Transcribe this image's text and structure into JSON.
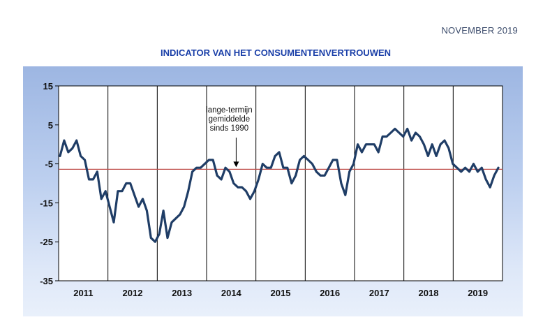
{
  "header": {
    "date": "NOVEMBER 2019"
  },
  "chart_data": {
    "type": "line",
    "title": "INDICATOR VAN HET CONSUMENTENVERTROUWEN",
    "xlabel": "",
    "ylabel": "",
    "ylim": [
      -35,
      15
    ],
    "yticks": [
      15,
      5,
      -5,
      -15,
      -25,
      -35
    ],
    "year_labels": [
      "2011",
      "2012",
      "2013",
      "2014",
      "2015",
      "2016",
      "2017",
      "2018",
      "2019"
    ],
    "x_start_year": 2011,
    "grid": "vertical lines at year boundaries",
    "reference_line": {
      "value": -6.4,
      "color": "#c0504d"
    },
    "annotation": {
      "lines": [
        "lange-termijn",
        "gemiddelde",
        "sinds 1990"
      ],
      "x_year": 2014.6,
      "arrow_to": -6.4
    },
    "series": [
      {
        "color": "#1f3d66",
        "values": [
          -3,
          1,
          -2,
          -1,
          1,
          -3,
          -4,
          -9,
          -9,
          -7,
          -14,
          -12,
          -16,
          -20,
          -12,
          -12,
          -10,
          -10,
          -13,
          -16,
          -14,
          -17,
          -24,
          -25,
          -23,
          -17,
          -24,
          -20,
          -19,
          -18,
          -16,
          -12,
          -7,
          -6,
          -6,
          -5,
          -4,
          -4,
          -8,
          -9,
          -6,
          -7,
          -10,
          -11,
          -11,
          -12,
          -14,
          -12,
          -9,
          -5,
          -6,
          -6,
          -3,
          -2,
          -6,
          -6,
          -10,
          -8,
          -4,
          -3,
          -4,
          -5,
          -7,
          -8,
          -8,
          -6,
          -4,
          -4,
          -10,
          -13,
          -7,
          -5,
          0,
          -2,
          0,
          0,
          0,
          -2,
          2,
          2,
          3,
          4,
          3,
          2,
          4,
          1,
          3,
          2,
          0,
          -3,
          0,
          -3,
          0,
          1,
          -1,
          -5,
          -6,
          -7,
          -6,
          -7,
          -5,
          -7,
          -6,
          -9,
          -11,
          -8,
          -6
        ]
      }
    ]
  }
}
